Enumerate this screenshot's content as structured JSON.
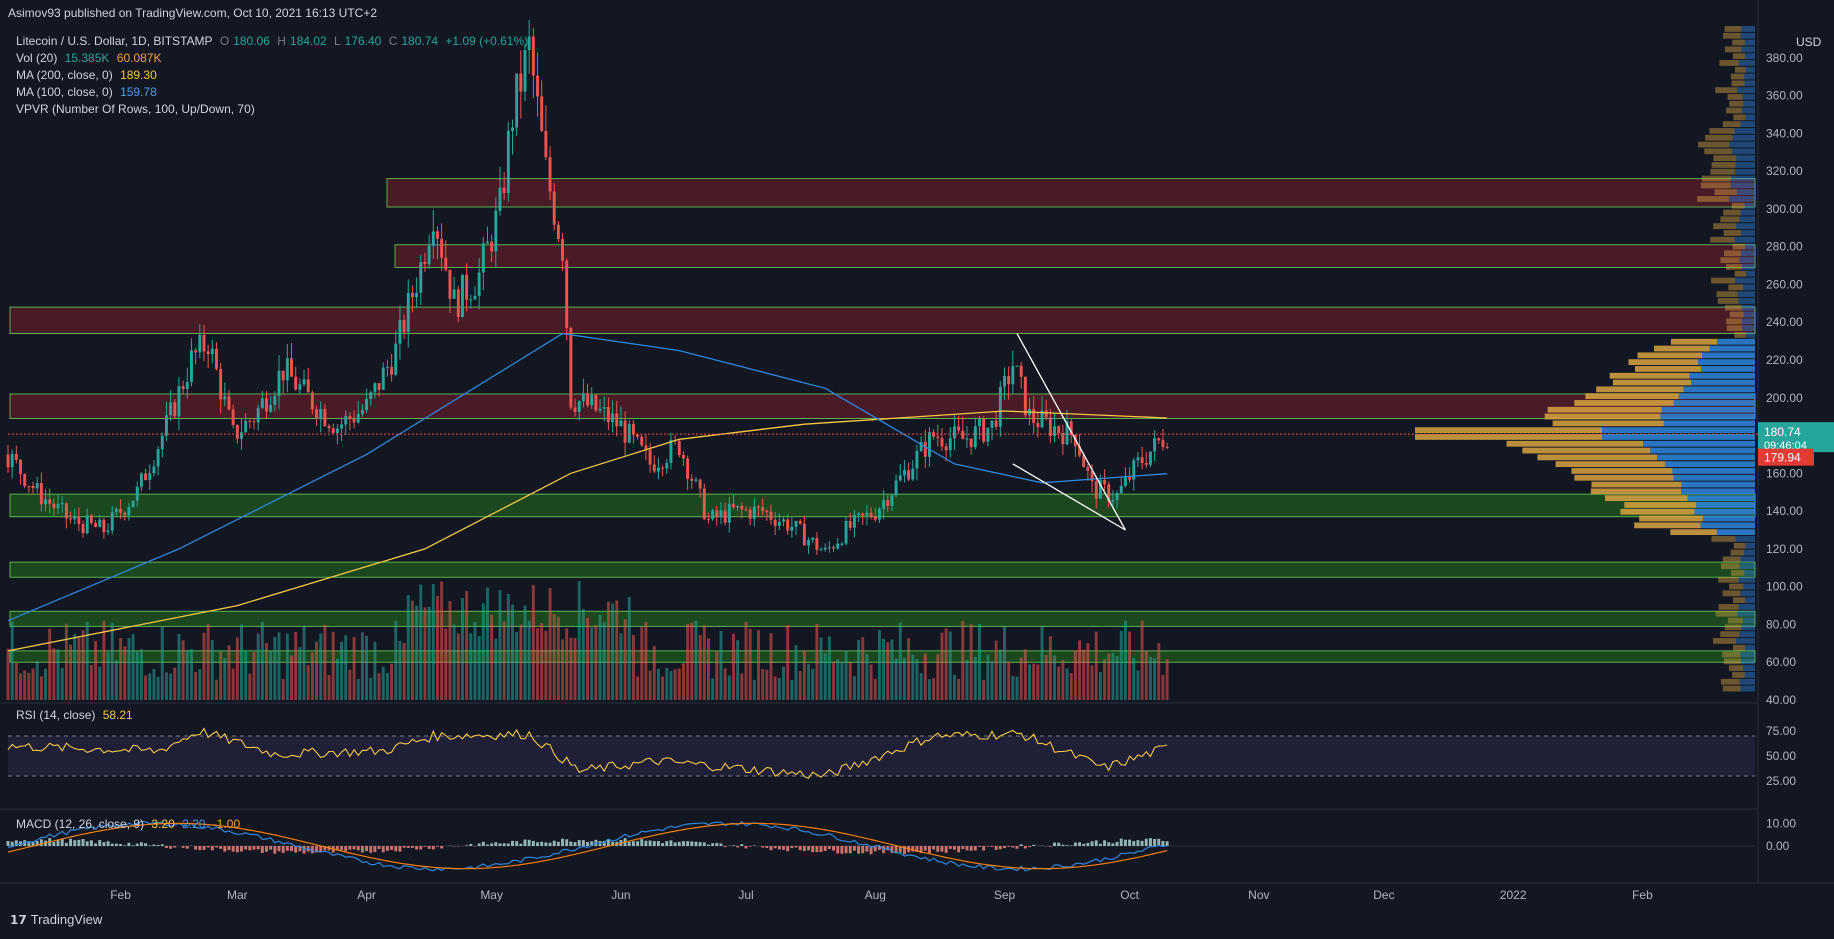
{
  "header": {
    "published": "Asimov93 published on TradingView.com, Oct 10, 2021 16:13 UTC+2"
  },
  "legend": {
    "symbol": "Litecoin / U.S. Dollar, 1D, BITSTAMP",
    "o_label": "O",
    "o_value": "180.06",
    "h_label": "H",
    "h_value": "184.02",
    "l_label": "L",
    "l_value": "176.40",
    "c_label": "C",
    "c_value": "180.74",
    "change": "+1.09 (+0.61%)",
    "vol_label": "Vol (20)",
    "vol_v1": "15.385K",
    "vol_v2": "60.087K",
    "ma200_label": "MA (200, close, 0)",
    "ma200_value": "189.30",
    "ma100_label": "MA (100, close, 0)",
    "ma100_value": "159.78",
    "vpvr_label": "VPVR (Number Of Rows, 100, Up/Down, 70)",
    "rsi_label": "RSI (14, close)",
    "rsi_value": "58.21",
    "macd_label": "MACD (12, 26, close, 9)",
    "macd_v1": "3.20",
    "macd_v2": "2.20",
    "macd_v3": "-1.00"
  },
  "price_axis": {
    "currency": "USD",
    "ticks": [
      "380.00",
      "360.00",
      "340.00",
      "320.00",
      "300.00",
      "280.00",
      "260.00",
      "240.00",
      "220.00",
      "200.00",
      "180.00",
      "160.00",
      "140.00",
      "120.00",
      "100.00",
      "80.00",
      "60.00",
      "40.00"
    ],
    "current_price": "180.74",
    "countdown": "09:46:04",
    "red_level": "179.94"
  },
  "rsi_axis": {
    "ticks": [
      "75.00",
      "50.00",
      "25.00"
    ]
  },
  "macd_axis": {
    "ticks": [
      "10.00",
      "0.00"
    ]
  },
  "time_axis": [
    "Feb",
    "Mar",
    "Apr",
    "May",
    "Jun",
    "Jul",
    "Aug",
    "Sep",
    "Oct",
    "Nov",
    "Dec",
    "2022",
    "Feb"
  ],
  "footer": {
    "brand": "TradingView"
  },
  "colors": {
    "bg": "#131722",
    "up": "#26a69a",
    "down": "#ef5350",
    "ma200": "#f5c747",
    "ma100": "#2e86de",
    "rsi": "#f5c747",
    "zone_red": "#5c1e2a",
    "zone_green": "#1f5a1f",
    "zone_border": "#6bd35a",
    "vp_orange": "#d9a441",
    "vp_blue": "#2e86de",
    "price_line": "#ef5350",
    "price_label": "#26a69a"
  },
  "chart_data": {
    "type": "candlestick",
    "title": "Litecoin / U.S. Dollar, 1D, BITSTAMP",
    "x_range": [
      "2021-01-05",
      "2022-02-28"
    ],
    "ylim": [
      40,
      400
    ],
    "close_path": [
      [
        "2021-01-05",
        170
      ],
      [
        "2021-01-12",
        150
      ],
      [
        "2021-01-20",
        135
      ],
      [
        "2021-01-28",
        130
      ],
      [
        "2021-02-05",
        150
      ],
      [
        "2021-02-12",
        185
      ],
      [
        "2021-02-18",
        220
      ],
      [
        "2021-02-22",
        230
      ],
      [
        "2021-02-28",
        180
      ],
      [
        "2021-03-05",
        190
      ],
      [
        "2021-03-12",
        215
      ],
      [
        "2021-03-18",
        200
      ],
      [
        "2021-03-25",
        185
      ],
      [
        "2021-04-01",
        195
      ],
      [
        "2021-04-08",
        225
      ],
      [
        "2021-04-14",
        270
      ],
      [
        "2021-04-17",
        300
      ],
      [
        "2021-04-22",
        250
      ],
      [
        "2021-04-28",
        265
      ],
      [
        "2021-05-03",
        300
      ],
      [
        "2021-05-06",
        350
      ],
      [
        "2021-05-10",
        385
      ],
      [
        "2021-05-14",
        320
      ],
      [
        "2021-05-18",
        280
      ],
      [
        "2021-05-20",
        200
      ],
      [
        "2021-05-25",
        195
      ],
      [
        "2021-06-01",
        185
      ],
      [
        "2021-06-08",
        165
      ],
      [
        "2021-06-15",
        175
      ],
      [
        "2021-06-22",
        135
      ],
      [
        "2021-06-28",
        140
      ],
      [
        "2021-07-05",
        140
      ],
      [
        "2021-07-12",
        132
      ],
      [
        "2021-07-20",
        118
      ],
      [
        "2021-07-25",
        130
      ],
      [
        "2021-08-01",
        140
      ],
      [
        "2021-08-08",
        160
      ],
      [
        "2021-08-15",
        180
      ],
      [
        "2021-08-22",
        178
      ],
      [
        "2021-08-29",
        185
      ],
      [
        "2021-09-03",
        218
      ],
      [
        "2021-09-07",
        190
      ],
      [
        "2021-09-12",
        185
      ],
      [
        "2021-09-18",
        180
      ],
      [
        "2021-09-22",
        152
      ],
      [
        "2021-09-28",
        148
      ],
      [
        "2021-10-03",
        165
      ],
      [
        "2021-10-10",
        180.74
      ]
    ],
    "zones_red": [
      [
        301,
        316
      ],
      [
        269,
        281
      ],
      [
        234,
        248
      ],
      [
        189,
        202
      ]
    ],
    "zones_green": [
      [
        137,
        149
      ],
      [
        105,
        113
      ],
      [
        79,
        87
      ],
      [
        60,
        66
      ]
    ],
    "ma200_path": [
      [
        "2021-01-05",
        66
      ],
      [
        "2021-03-01",
        90
      ],
      [
        "2021-04-15",
        120
      ],
      [
        "2021-05-20",
        160
      ],
      [
        "2021-06-15",
        178
      ],
      [
        "2021-07-15",
        186
      ],
      [
        "2021-09-01",
        193
      ],
      [
        "2021-10-10",
        189.3
      ]
    ],
    "ma100_path": [
      [
        "2021-01-05",
        82
      ],
      [
        "2021-02-15",
        120
      ],
      [
        "2021-04-01",
        170
      ],
      [
        "2021-05-18",
        234
      ],
      [
        "2021-06-15",
        225
      ],
      [
        "2021-07-20",
        205
      ],
      [
        "2021-08-20",
        165
      ],
      [
        "2021-09-10",
        155
      ],
      [
        "2021-10-10",
        159.78
      ]
    ],
    "trendlines": [
      [
        [
          "2021-09-04",
          234
        ],
        [
          "2021-09-30",
          130
        ]
      ],
      [
        [
          "2021-09-03",
          165
        ],
        [
          "2021-09-30",
          130
        ]
      ]
    ],
    "rsi": {
      "ylim": [
        0,
        100
      ],
      "levels": [
        70,
        30
      ],
      "path": [
        [
          "2021-01-05",
          60
        ],
        [
          "2021-02-10",
          55
        ],
        [
          "2021-02-20",
          75
        ],
        [
          "2021-03-10",
          52
        ],
        [
          "2021-04-05",
          55
        ],
        [
          "2021-04-17",
          70
        ],
        [
          "2021-05-10",
          72
        ],
        [
          "2021-05-22",
          35
        ],
        [
          "2021-06-10",
          45
        ],
        [
          "2021-07-20",
          30
        ],
        [
          "2021-08-15",
          70
        ],
        [
          "2021-09-05",
          72
        ],
        [
          "2021-09-25",
          38
        ],
        [
          "2021-10-10",
          58.21
        ]
      ]
    },
    "macd": {
      "ylim": [
        -15,
        15
      ],
      "values": [
        3.2,
        2.2,
        -1.0
      ]
    }
  }
}
